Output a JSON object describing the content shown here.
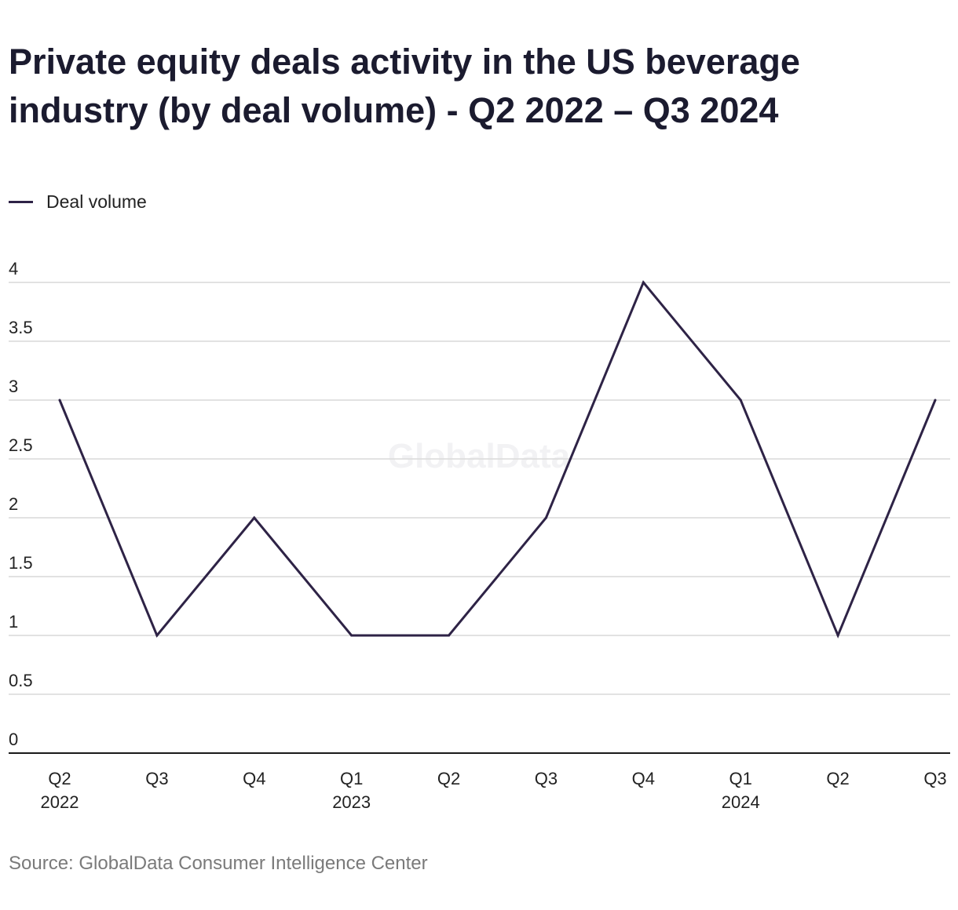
{
  "title": "Private equity deals activity in the US beverage industry (by deal volume) - Q2 2022 – Q3 2024",
  "legend": {
    "label": "Deal volume"
  },
  "source": "Source: GlobalData Consumer Intelligence Center",
  "watermark": "GlobalData",
  "colors": {
    "line": "#2e2346",
    "grid": "#d9d9d9",
    "axis": "#1a1a1a",
    "text": "#222222"
  },
  "chart_data": {
    "type": "line",
    "title": "Private equity deals activity in the US beverage industry (by deal volume) - Q2 2022 – Q3 2024",
    "xlabel": "",
    "ylabel": "",
    "categories": [
      [
        "Q2",
        "2022"
      ],
      [
        "Q3",
        ""
      ],
      [
        "Q4",
        ""
      ],
      [
        "Q1",
        "2023"
      ],
      [
        "Q2",
        ""
      ],
      [
        "Q3",
        ""
      ],
      [
        "Q4",
        ""
      ],
      [
        "Q1",
        "2024"
      ],
      [
        "Q2",
        ""
      ],
      [
        "Q3",
        ""
      ]
    ],
    "series": [
      {
        "name": "Deal volume",
        "values": [
          3,
          1,
          2,
          1,
          1,
          2,
          4,
          3,
          1,
          3
        ]
      }
    ],
    "ylim": [
      0,
      4
    ],
    "yticks": [
      "0",
      "0.5",
      "1",
      "1.5",
      "2",
      "2.5",
      "3",
      "3.5",
      "4"
    ],
    "grid": true,
    "legend_position": "top-left"
  }
}
